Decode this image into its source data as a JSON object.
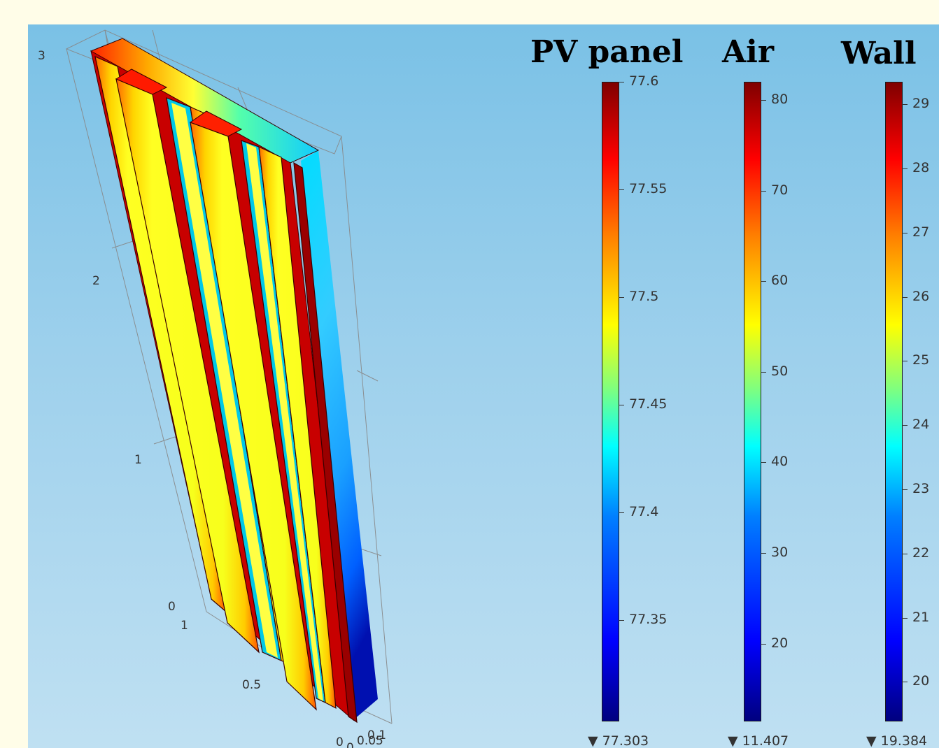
{
  "axis_ticks": {
    "z": [
      "3",
      "2",
      "1",
      "0"
    ],
    "y": [
      "1",
      "0.5",
      "0"
    ],
    "x": [
      "0.1",
      "0.05",
      "0"
    ]
  },
  "colorbars": [
    {
      "title": "PV panel",
      "ticks": [
        "77.6",
        "77.55",
        "77.5",
        "77.45",
        "77.4",
        "77.35"
      ],
      "tick_values": [
        77.6,
        77.55,
        77.5,
        77.45,
        77.4,
        77.35
      ],
      "range": [
        77.303,
        77.6
      ],
      "min_label": "▼ 77.303"
    },
    {
      "title": "Air",
      "ticks": [
        "80",
        "70",
        "60",
        "50",
        "40",
        "30",
        "20"
      ],
      "tick_values": [
        80,
        70,
        60,
        50,
        40,
        30,
        20
      ],
      "range": [
        11.407,
        82
      ],
      "min_label": "▼ 11.407"
    },
    {
      "title": "Wall",
      "ticks": [
        "29",
        "28",
        "27",
        "26",
        "25",
        "24",
        "23",
        "22",
        "21",
        "20"
      ],
      "tick_values": [
        29,
        28,
        27,
        26,
        25,
        24,
        23,
        22,
        21,
        20
      ],
      "range": [
        19.384,
        29.35
      ],
      "min_label": "▼ 19.384"
    }
  ],
  "colormap": "rainbow",
  "colors": {
    "page_background": "#fffde8",
    "plot_background_top": "#7ac1e6",
    "plot_background_bottom": "#bfe0f2",
    "hot": "#ff0000",
    "mid": "#ffff00",
    "cool": "#00ffff"
  }
}
